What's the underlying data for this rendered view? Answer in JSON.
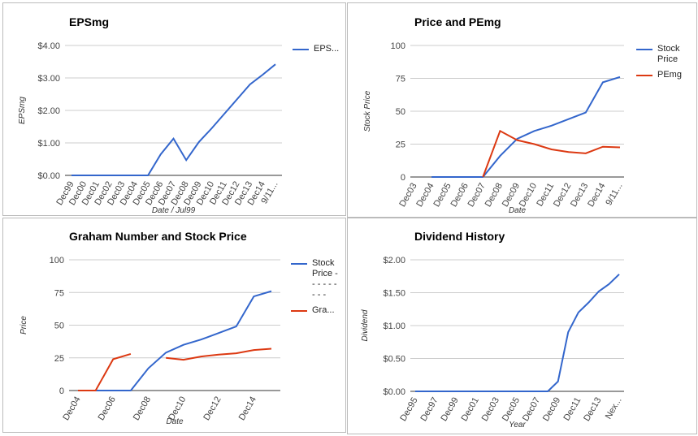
{
  "chart_data": [
    {
      "type": "line",
      "title": "EPSmg",
      "y_label": "EPSmg",
      "x_label": "Date / Jul99",
      "categories": [
        "Dec99",
        "Dec00",
        "Dec01",
        "Dec02",
        "Dec03",
        "Dec04",
        "Dec05",
        "Dec06",
        "Dec07",
        "Dec08",
        "Dec09",
        "Dec10",
        "Dec11",
        "Dec12",
        "Dec13",
        "Dec14",
        "9/11..."
      ],
      "series": [
        {
          "name": "EPS...",
          "color": "#3366cc",
          "values": [
            0,
            0,
            0,
            0,
            0,
            0,
            0,
            0.65,
            1.13,
            0.47,
            1.03,
            1.45,
            1.9,
            2.35,
            2.8,
            3.1,
            3.42
          ]
        }
      ],
      "ylim": [
        0,
        4
      ],
      "yticks": [
        {
          "value": 0,
          "label": "$0.00"
        },
        {
          "value": 1,
          "label": "$1.00"
        },
        {
          "value": 2,
          "label": "$2.00"
        },
        {
          "value": 3,
          "label": "$3.00"
        },
        {
          "value": 4,
          "label": "$4.00"
        }
      ],
      "grid": true,
      "legend": "right"
    },
    {
      "type": "line",
      "title": "Price and PEmg",
      "y_label": "Stock Price",
      "x_label": "Date",
      "categories": [
        "Dec03",
        "Dec04",
        "Dec05",
        "Dec06",
        "Dec07",
        "Dec08",
        "Dec09",
        "Dec10",
        "Dec11",
        "Dec12",
        "Dec13",
        "Dec14",
        "9/11..."
      ],
      "series": [
        {
          "name": "Stock Price",
          "color": "#3366cc",
          "values": [
            null,
            0,
            0,
            0,
            0,
            16,
            29,
            35,
            39,
            44,
            49,
            72,
            76
          ]
        },
        {
          "name": "PEmg",
          "color": "#dc3912",
          "values": [
            null,
            null,
            null,
            null,
            0,
            35,
            28,
            25,
            21,
            19,
            18,
            23,
            22.5
          ]
        }
      ],
      "ylim": [
        0,
        100
      ],
      "yticks": [
        0,
        25,
        50,
        75,
        100
      ],
      "grid": true,
      "legend": "right"
    },
    {
      "type": "line",
      "title": "Graham Number and Stock Price",
      "y_label": "Price",
      "x_label": "Date",
      "categories": [
        "Dec04",
        null,
        "Dec06",
        null,
        "Dec08",
        null,
        "Dec10",
        null,
        "Dec12",
        null,
        "Dec14",
        null
      ],
      "series": [
        {
          "name": "Stock Price - - - - - - - - -",
          "color": "#3366cc",
          "values": [
            0,
            0,
            0,
            0,
            17,
            29,
            35,
            39,
            44,
            49,
            72,
            76
          ]
        },
        {
          "name": "Gra...",
          "color": "#dc3912",
          "values": [
            0,
            0,
            24,
            28,
            null,
            25,
            23.5,
            26,
            27.5,
            28.5,
            31,
            32
          ]
        }
      ],
      "ylim": [
        0,
        100
      ],
      "yticks": [
        0,
        25,
        50,
        75,
        100
      ],
      "grid": true,
      "legend": "right"
    },
    {
      "type": "line",
      "title": "Dividend History",
      "y_label": "Dividend",
      "x_label": "Year",
      "categories": [
        "Dec95",
        null,
        "Dec97",
        null,
        "Dec99",
        null,
        "Dec01",
        null,
        "Dec03",
        null,
        "Dec05",
        null,
        "Dec07",
        null,
        "Dec09",
        null,
        "Dec11",
        null,
        "Dec13",
        null,
        "Nex..."
      ],
      "series": [
        {
          "color": "#3366cc",
          "values": [
            0,
            0,
            0,
            0,
            0,
            0,
            0,
            0,
            0,
            0,
            0,
            0,
            0,
            0,
            0.15,
            0.9,
            1.2,
            1.35,
            1.52,
            1.63,
            1.78
          ]
        }
      ],
      "ylim": [
        0,
        2
      ],
      "yticks": [
        {
          "value": 0,
          "label": "$0.00"
        },
        {
          "value": 0.5,
          "label": "$0.50"
        },
        {
          "value": 1,
          "label": "$1.00"
        },
        {
          "value": 1.5,
          "label": "$1.50"
        },
        {
          "value": 2,
          "label": "$2.00"
        }
      ],
      "grid": true
    }
  ]
}
